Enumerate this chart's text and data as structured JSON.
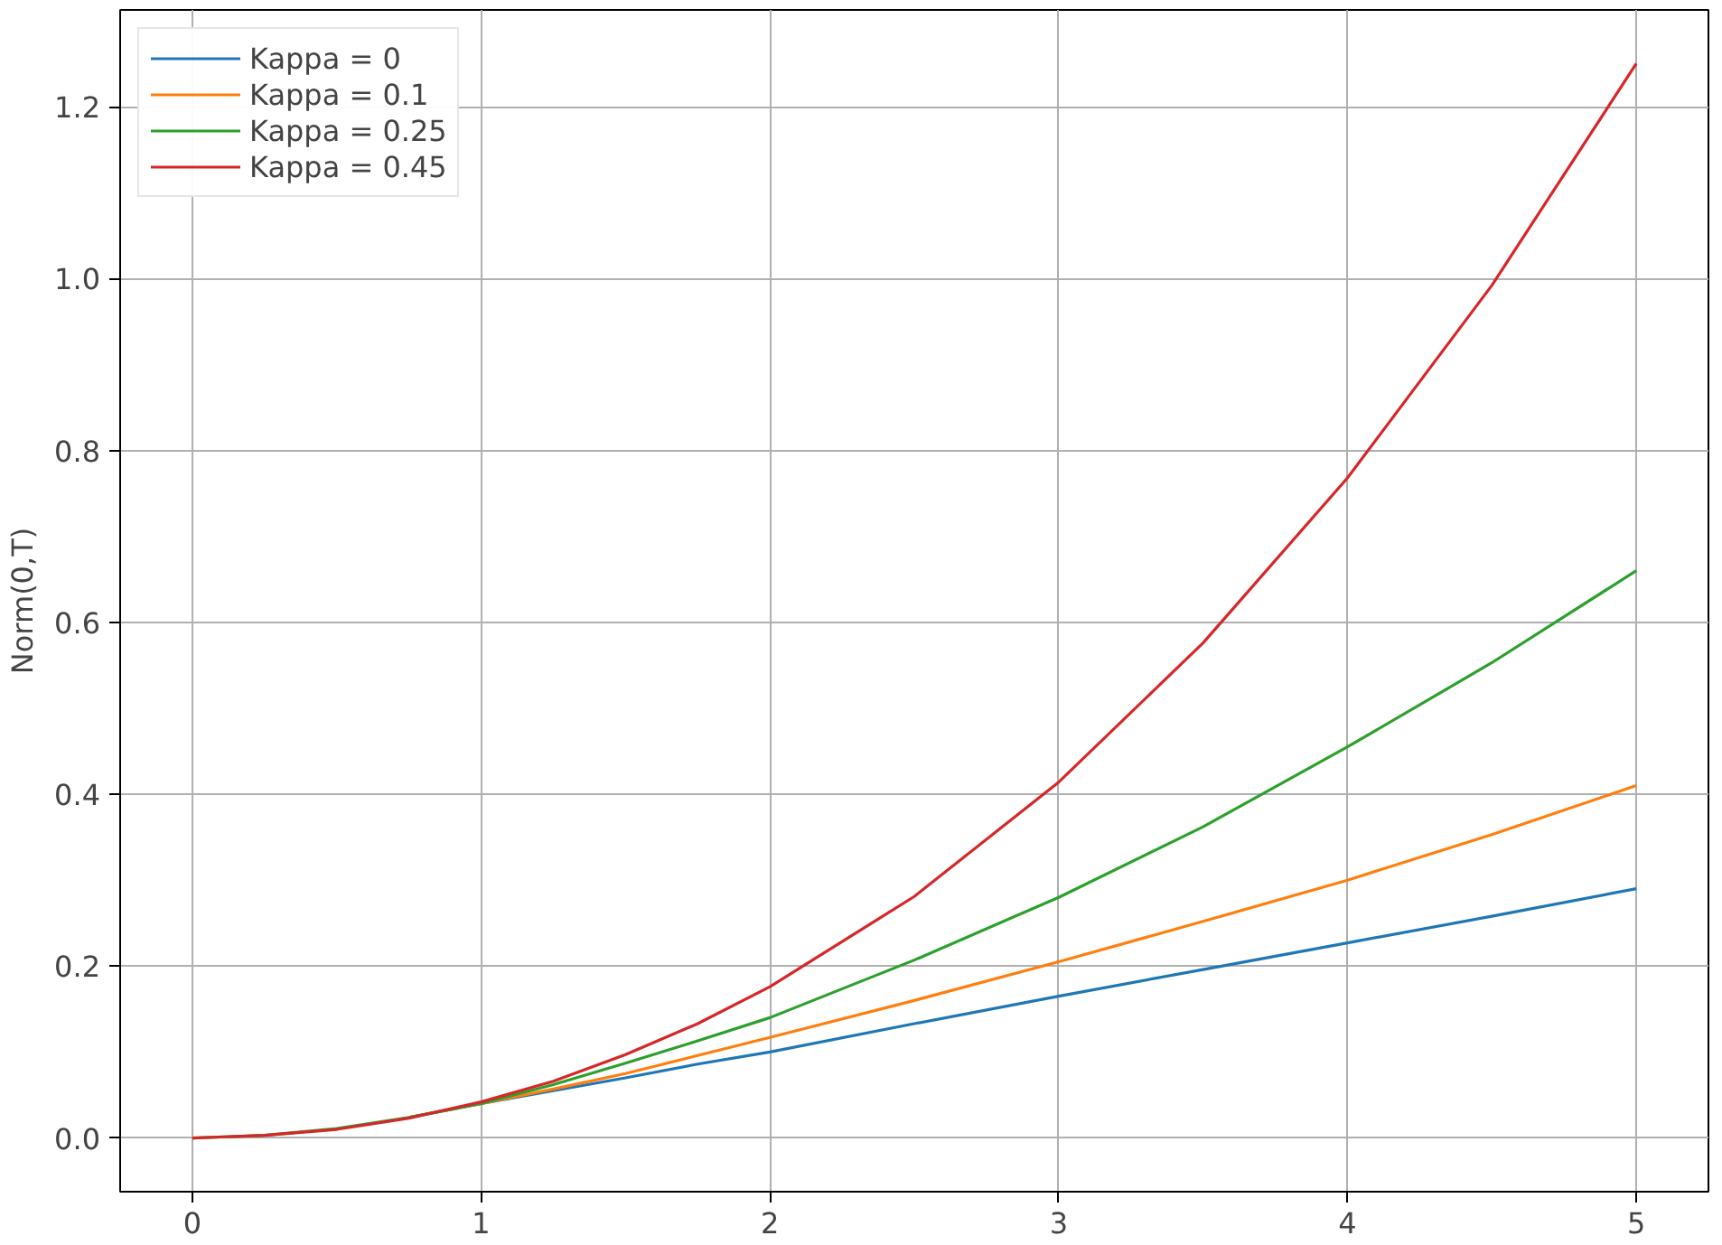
{
  "chart_data": {
    "type": "line",
    "ylabel": "Norm(0,T)",
    "x": [
      0,
      0.25,
      0.5,
      0.75,
      1,
      1.25,
      1.5,
      1.75,
      2,
      2.5,
      3,
      3.5,
      4,
      4.5,
      5
    ],
    "series": [
      {
        "name": "Kappa = 0",
        "color": "#1f77b4",
        "values": [
          null,
          null,
          null,
          0.024,
          0.04,
          0.055,
          0.07,
          0.086,
          0.1,
          0.133,
          0.165,
          0.196,
          0.227,
          0.258,
          0.29
        ]
      },
      {
        "name": "Kappa = 0.1",
        "color": "#ff7f0e",
        "values": [
          null,
          null,
          null,
          0.024,
          0.04,
          0.057,
          0.075,
          0.096,
          0.117,
          0.16,
          0.205,
          0.252,
          0.3,
          0.353,
          0.41
        ]
      },
      {
        "name": "Kappa = 0.25",
        "color": "#2ca02c",
        "values": [
          0,
          0.003,
          0.011,
          0.024,
          0.04,
          0.062,
          0.087,
          0.113,
          0.14,
          0.207,
          0.28,
          0.362,
          0.455,
          0.553,
          0.66
        ]
      },
      {
        "name": "Kappa = 0.45",
        "color": "#d62728",
        "values": [
          0,
          0.003,
          0.01,
          0.023,
          0.042,
          0.066,
          0.097,
          0.133,
          0.176,
          0.281,
          0.414,
          0.576,
          0.768,
          0.992,
          1.25
        ]
      }
    ],
    "xlim": [
      -0.25,
      5.25
    ],
    "ylim": [
      -0.0625,
      1.3125
    ],
    "xticks": [
      0,
      1,
      2,
      3,
      4,
      5
    ],
    "yticks": [
      {
        "value": 0,
        "label": "0.0"
      },
      {
        "value": 0.2,
        "label": "0.2"
      },
      {
        "value": 0.4,
        "label": "0.4"
      },
      {
        "value": 0.6,
        "label": "0.6"
      },
      {
        "value": 0.8,
        "label": "0.8"
      },
      {
        "value": 1.0,
        "label": "1.0"
      },
      {
        "value": 1.2,
        "label": "1.2"
      }
    ],
    "grid": true,
    "legend": "top left",
    "line_style": "solid"
  }
}
